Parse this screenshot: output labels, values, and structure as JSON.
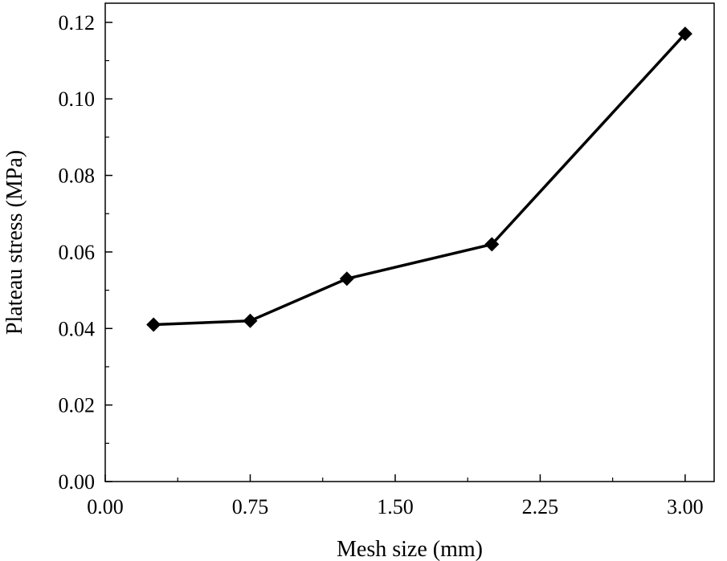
{
  "chart_data": {
    "type": "line",
    "title": "",
    "xlabel": "Mesh size (mm)",
    "ylabel": "Plateau stress (MPa)",
    "xlim": [
      0,
      3.15
    ],
    "ylim": [
      0,
      0.125
    ],
    "x_ticks": [
      0,
      0.75,
      1.5,
      2.25,
      3.0
    ],
    "x_tick_labels": [
      "0.00",
      "0.75",
      "1.50",
      "2.25",
      "3.00"
    ],
    "y_ticks": [
      0,
      0.02,
      0.04,
      0.06,
      0.08,
      0.1,
      0.12
    ],
    "y_tick_labels": [
      "0.00",
      "0.02",
      "0.04",
      "0.06",
      "0.08",
      "0.10",
      "0.12"
    ],
    "grid": false,
    "series": [
      {
        "name": "Plateau stress",
        "marker": "diamond",
        "color": "#000000",
        "x": [
          0.25,
          0.75,
          1.25,
          2.0,
          3.0
        ],
        "y": [
          0.041,
          0.042,
          0.053,
          0.062,
          0.117
        ]
      }
    ]
  }
}
